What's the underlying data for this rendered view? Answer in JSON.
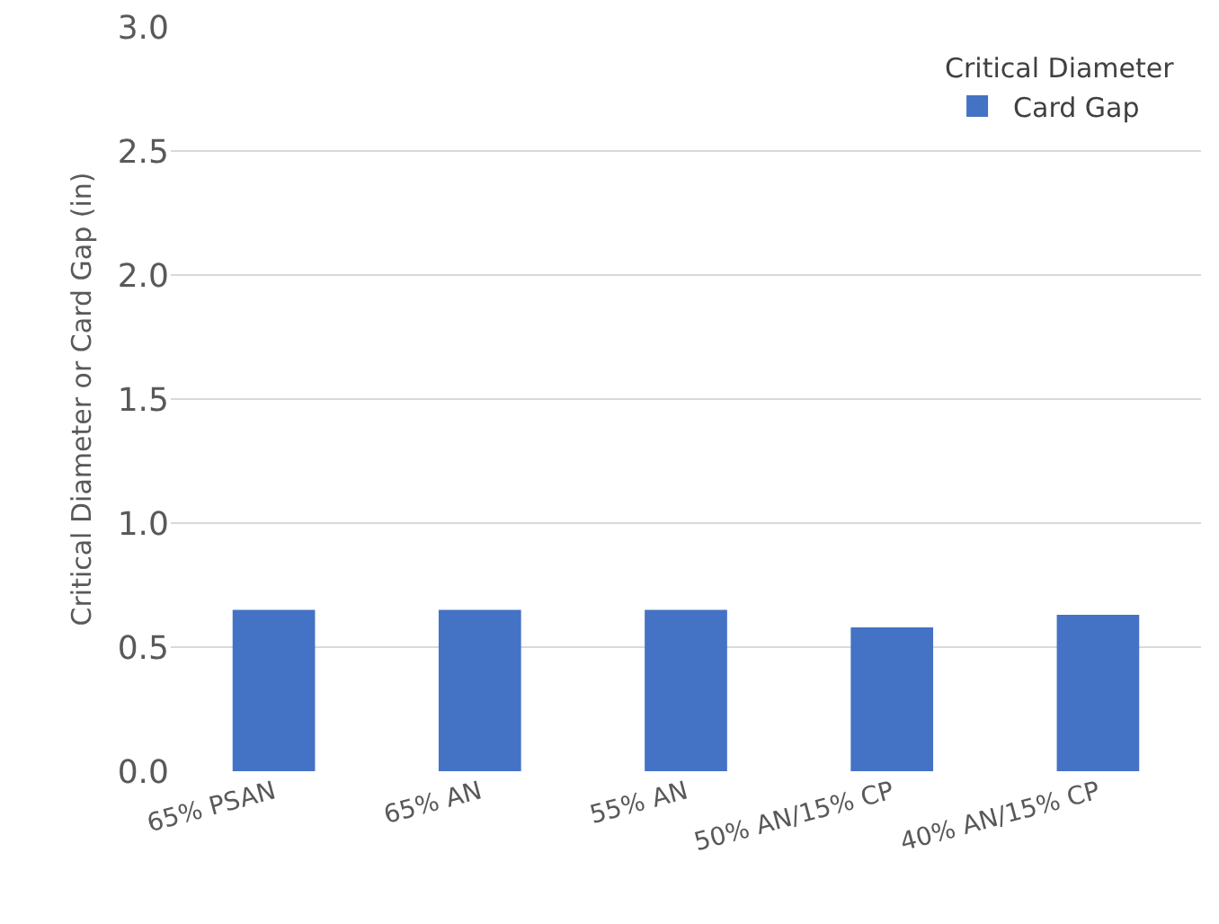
{
  "chart_data": {
    "type": "bar",
    "ylabel": "Critical Diameter or Card Gap (in)",
    "legend_title": "Critical Diameter",
    "categories": [
      "65% PSAN",
      "65% AN",
      "55% AN",
      "50% AN/15% CP",
      "40% AN/15% CP"
    ],
    "series": [
      {
        "name": "Card Gap",
        "color": "#4472c4",
        "values": [
          0.65,
          0.65,
          0.65,
          0.58,
          0.63
        ]
      }
    ],
    "ylim": [
      0,
      3
    ],
    "yticks": [
      {
        "value": 0,
        "label": "0.0"
      },
      {
        "value": 0.5,
        "label": "0.5"
      },
      {
        "value": 1,
        "label": "1.0"
      },
      {
        "value": 1.5,
        "label": "1.5"
      },
      {
        "value": 2,
        "label": "2.0"
      },
      {
        "value": 2.5,
        "label": "2.5"
      },
      {
        "value": 3,
        "label": "3.0"
      }
    ],
    "grid": "y",
    "legend": "top right"
  }
}
